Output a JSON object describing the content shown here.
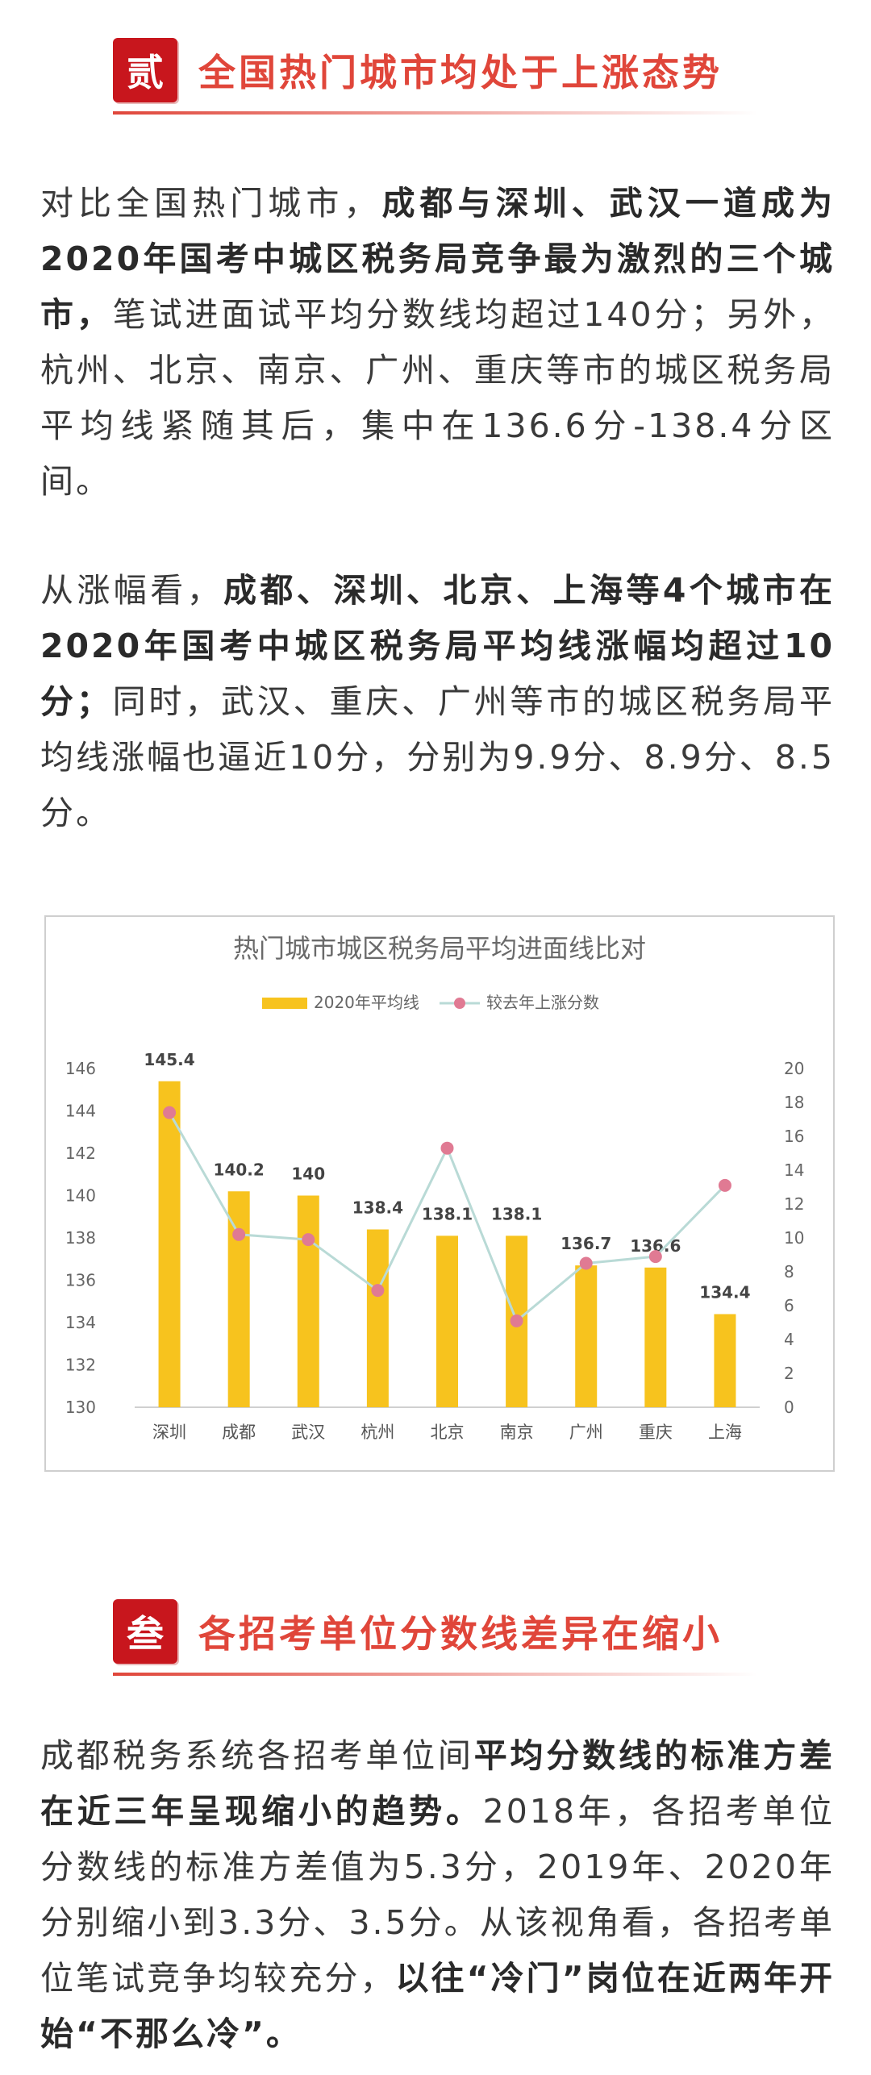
{
  "section2": {
    "seal": "贰",
    "title": "全国热门城市均处于上涨态势"
  },
  "para1": {
    "p1": "对比全国热门城市，",
    "p2": "成都与深圳、武汉一道成为2020年国考中城区税务局竞争最为激烈的三个城市，",
    "p3": "笔试进面试平均分数线均超过140分；另外，杭州、北京、南京、广州、重庆等市的城区税务局平均线紧随其后，集中在136.6分-138.4分区间。"
  },
  "para2": {
    "p1": "从涨幅看，",
    "p2": "成都、深圳、北京、上海等4个城市在2020年国考中城区税务局平均线涨幅均超过10分；",
    "p3": "同时，武汉、重庆、广州等市的城区税务局平均线涨幅也逼近10分，分别为9.9分、8.9分、8.5分。"
  },
  "chart_data": {
    "type": "bar",
    "title": "热门城市城区税务局平均进面线比对",
    "categories": [
      "深圳",
      "成都",
      "武汉",
      "杭州",
      "北京",
      "南京",
      "广州",
      "重庆",
      "上海"
    ],
    "series": [
      {
        "name": "2020年平均线",
        "type": "bar",
        "axis": "left",
        "values": [
          145.4,
          140.2,
          140,
          138.4,
          138.1,
          138.1,
          136.7,
          136.6,
          134.4
        ],
        "labels": [
          "145.4",
          "140.2",
          "140",
          "138.4",
          "138.1",
          "138.1",
          "136.7",
          "136.6",
          "134.4"
        ],
        "color": "#f7c31e"
      },
      {
        "name": "较去年上涨分数",
        "type": "line",
        "axis": "right",
        "values": [
          17.4,
          10.2,
          9.9,
          6.9,
          15.3,
          5.1,
          8.5,
          8.9,
          13.1
        ],
        "color": "#e07a93",
        "line_color": "#b9dad6"
      }
    ],
    "ylim": [
      130,
      146
    ],
    "y_ticks": [
      "130",
      "132",
      "134",
      "136",
      "138",
      "140",
      "142",
      "144",
      "146"
    ],
    "y2lim": [
      0,
      20
    ],
    "y2_ticks": [
      "0",
      "2",
      "4",
      "6",
      "8",
      "10",
      "12",
      "14",
      "16",
      "18",
      "20"
    ],
    "legend": "top-center",
    "grid": false
  },
  "section3": {
    "seal": "叁",
    "title": "各招考单位分数线差异在缩小"
  },
  "para3": {
    "p1": "成都税务系统各招考单位间",
    "p2": "平均分数线的标准方差在近三年呈现缩小的趋势。",
    "p3": "2018年，各招考单位分数线的标准方差值为5.3分，2019年、2020年分别缩小到3.3分、3.5分。从该视角看，各招考单位笔试竞争均较充分，",
    "p4": "以往“冷门”岗位在近两年开始“不那么冷”。"
  }
}
